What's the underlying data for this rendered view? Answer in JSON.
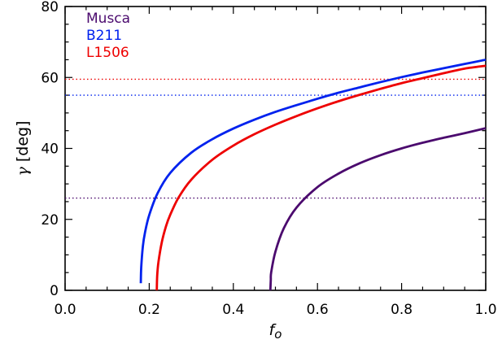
{
  "chart_data": {
    "type": "line",
    "xlabel": "f",
    "xlabel_sub": "o",
    "ylabel_symbol": "γ",
    "ylabel_unit": "[deg]",
    "xlim": [
      0.0,
      1.0
    ],
    "ylim": [
      0,
      80
    ],
    "x_ticks": [
      "0.0",
      "0.2",
      "0.4",
      "0.6",
      "0.8",
      "1.0"
    ],
    "y_ticks": [
      "0",
      "20",
      "40",
      "60",
      "80"
    ],
    "legend_position": "top-left",
    "grid": false,
    "series": [
      {
        "name": "Musca",
        "color": "#4b0a6e",
        "threshold": 26.0,
        "x": [
          0.488,
          0.489,
          0.49,
          0.5,
          0.52,
          0.55,
          0.6,
          0.65,
          0.7,
          0.75,
          0.8,
          0.85,
          0.9,
          0.95,
          1.0
        ],
        "y": [
          0,
          2.9,
          5.1,
          10.9,
          17.5,
          23.3,
          29.1,
          32.9,
          35.8,
          38.1,
          40.0,
          41.6,
          43.0,
          44.3,
          45.7
        ]
      },
      {
        "name": "B211",
        "color": "#0022ee",
        "threshold": 55.0,
        "x": [
          0.18,
          0.181,
          0.185,
          0.19,
          0.2,
          0.22,
          0.25,
          0.3,
          0.35,
          0.4,
          0.45,
          0.5,
          0.55,
          0.6,
          0.65,
          0.7,
          0.75,
          0.8,
          0.85,
          0.9,
          0.95,
          1.0
        ],
        "y": [
          2.0,
          6.5,
          12.5,
          16.3,
          21.2,
          27.4,
          33.1,
          38.8,
          42.6,
          45.6,
          48.1,
          50.3,
          52.2,
          54.0,
          55.7,
          57.2,
          58.7,
          60.1,
          61.4,
          62.6,
          63.8,
          65.0
        ]
      },
      {
        "name": "L1506",
        "color": "#ee0000",
        "threshold": 59.5,
        "x": [
          0.218,
          0.219,
          0.222,
          0.23,
          0.24,
          0.25,
          0.27,
          0.3,
          0.35,
          0.4,
          0.45,
          0.5,
          0.55,
          0.6,
          0.65,
          0.7,
          0.75,
          0.8,
          0.85,
          0.9,
          0.95,
          1.0
        ],
        "y": [
          0,
          4.2,
          8.0,
          13.6,
          18.1,
          21.3,
          26.2,
          31.2,
          36.8,
          40.8,
          44.0,
          46.7,
          49.1,
          51.3,
          53.3,
          55.1,
          56.8,
          58.4,
          59.8,
          61.2,
          62.5,
          63.3
        ]
      }
    ]
  }
}
